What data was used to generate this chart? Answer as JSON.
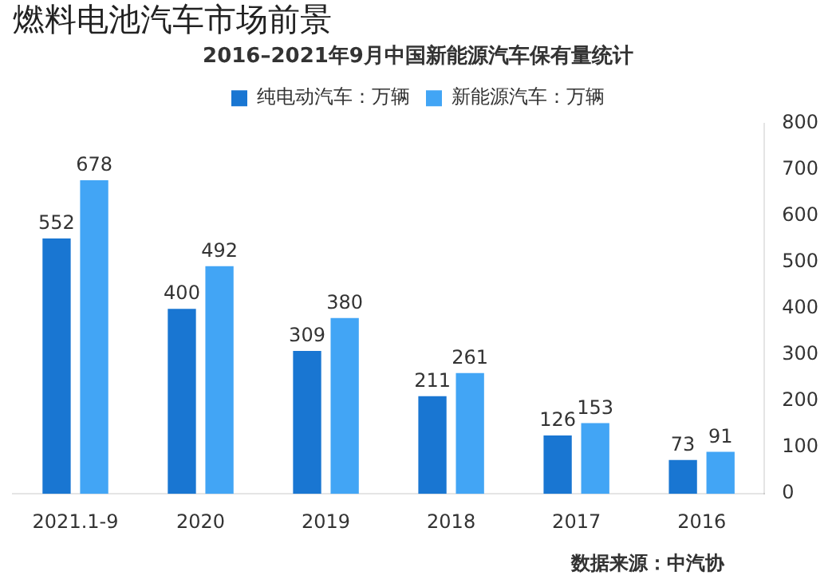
{
  "chart_data": {
    "type": "bar",
    "title": "燃料电池汽车市场前景",
    "subtitle": "2016–2021年9月中国新能源汽车保有量统计",
    "categories": [
      "2021.1-9",
      "2020",
      "2019",
      "2018",
      "2017",
      "2016"
    ],
    "series": [
      {
        "name": "纯电动汽车：万辆",
        "color": "#1976d2",
        "values": [
          552,
          400,
          309,
          211,
          126,
          73
        ]
      },
      {
        "name": "新能源汽车：万辆",
        "color": "#42a5f5",
        "values": [
          678,
          492,
          380,
          261,
          153,
          91
        ]
      }
    ],
    "ylim": [
      0,
      800
    ],
    "yticks": [
      0,
      100,
      200,
      300,
      400,
      500,
      600,
      700,
      800
    ],
    "grid": false,
    "legend": "top",
    "data_labels": true,
    "annotations": [
      "数据来源：中汽协"
    ]
  }
}
